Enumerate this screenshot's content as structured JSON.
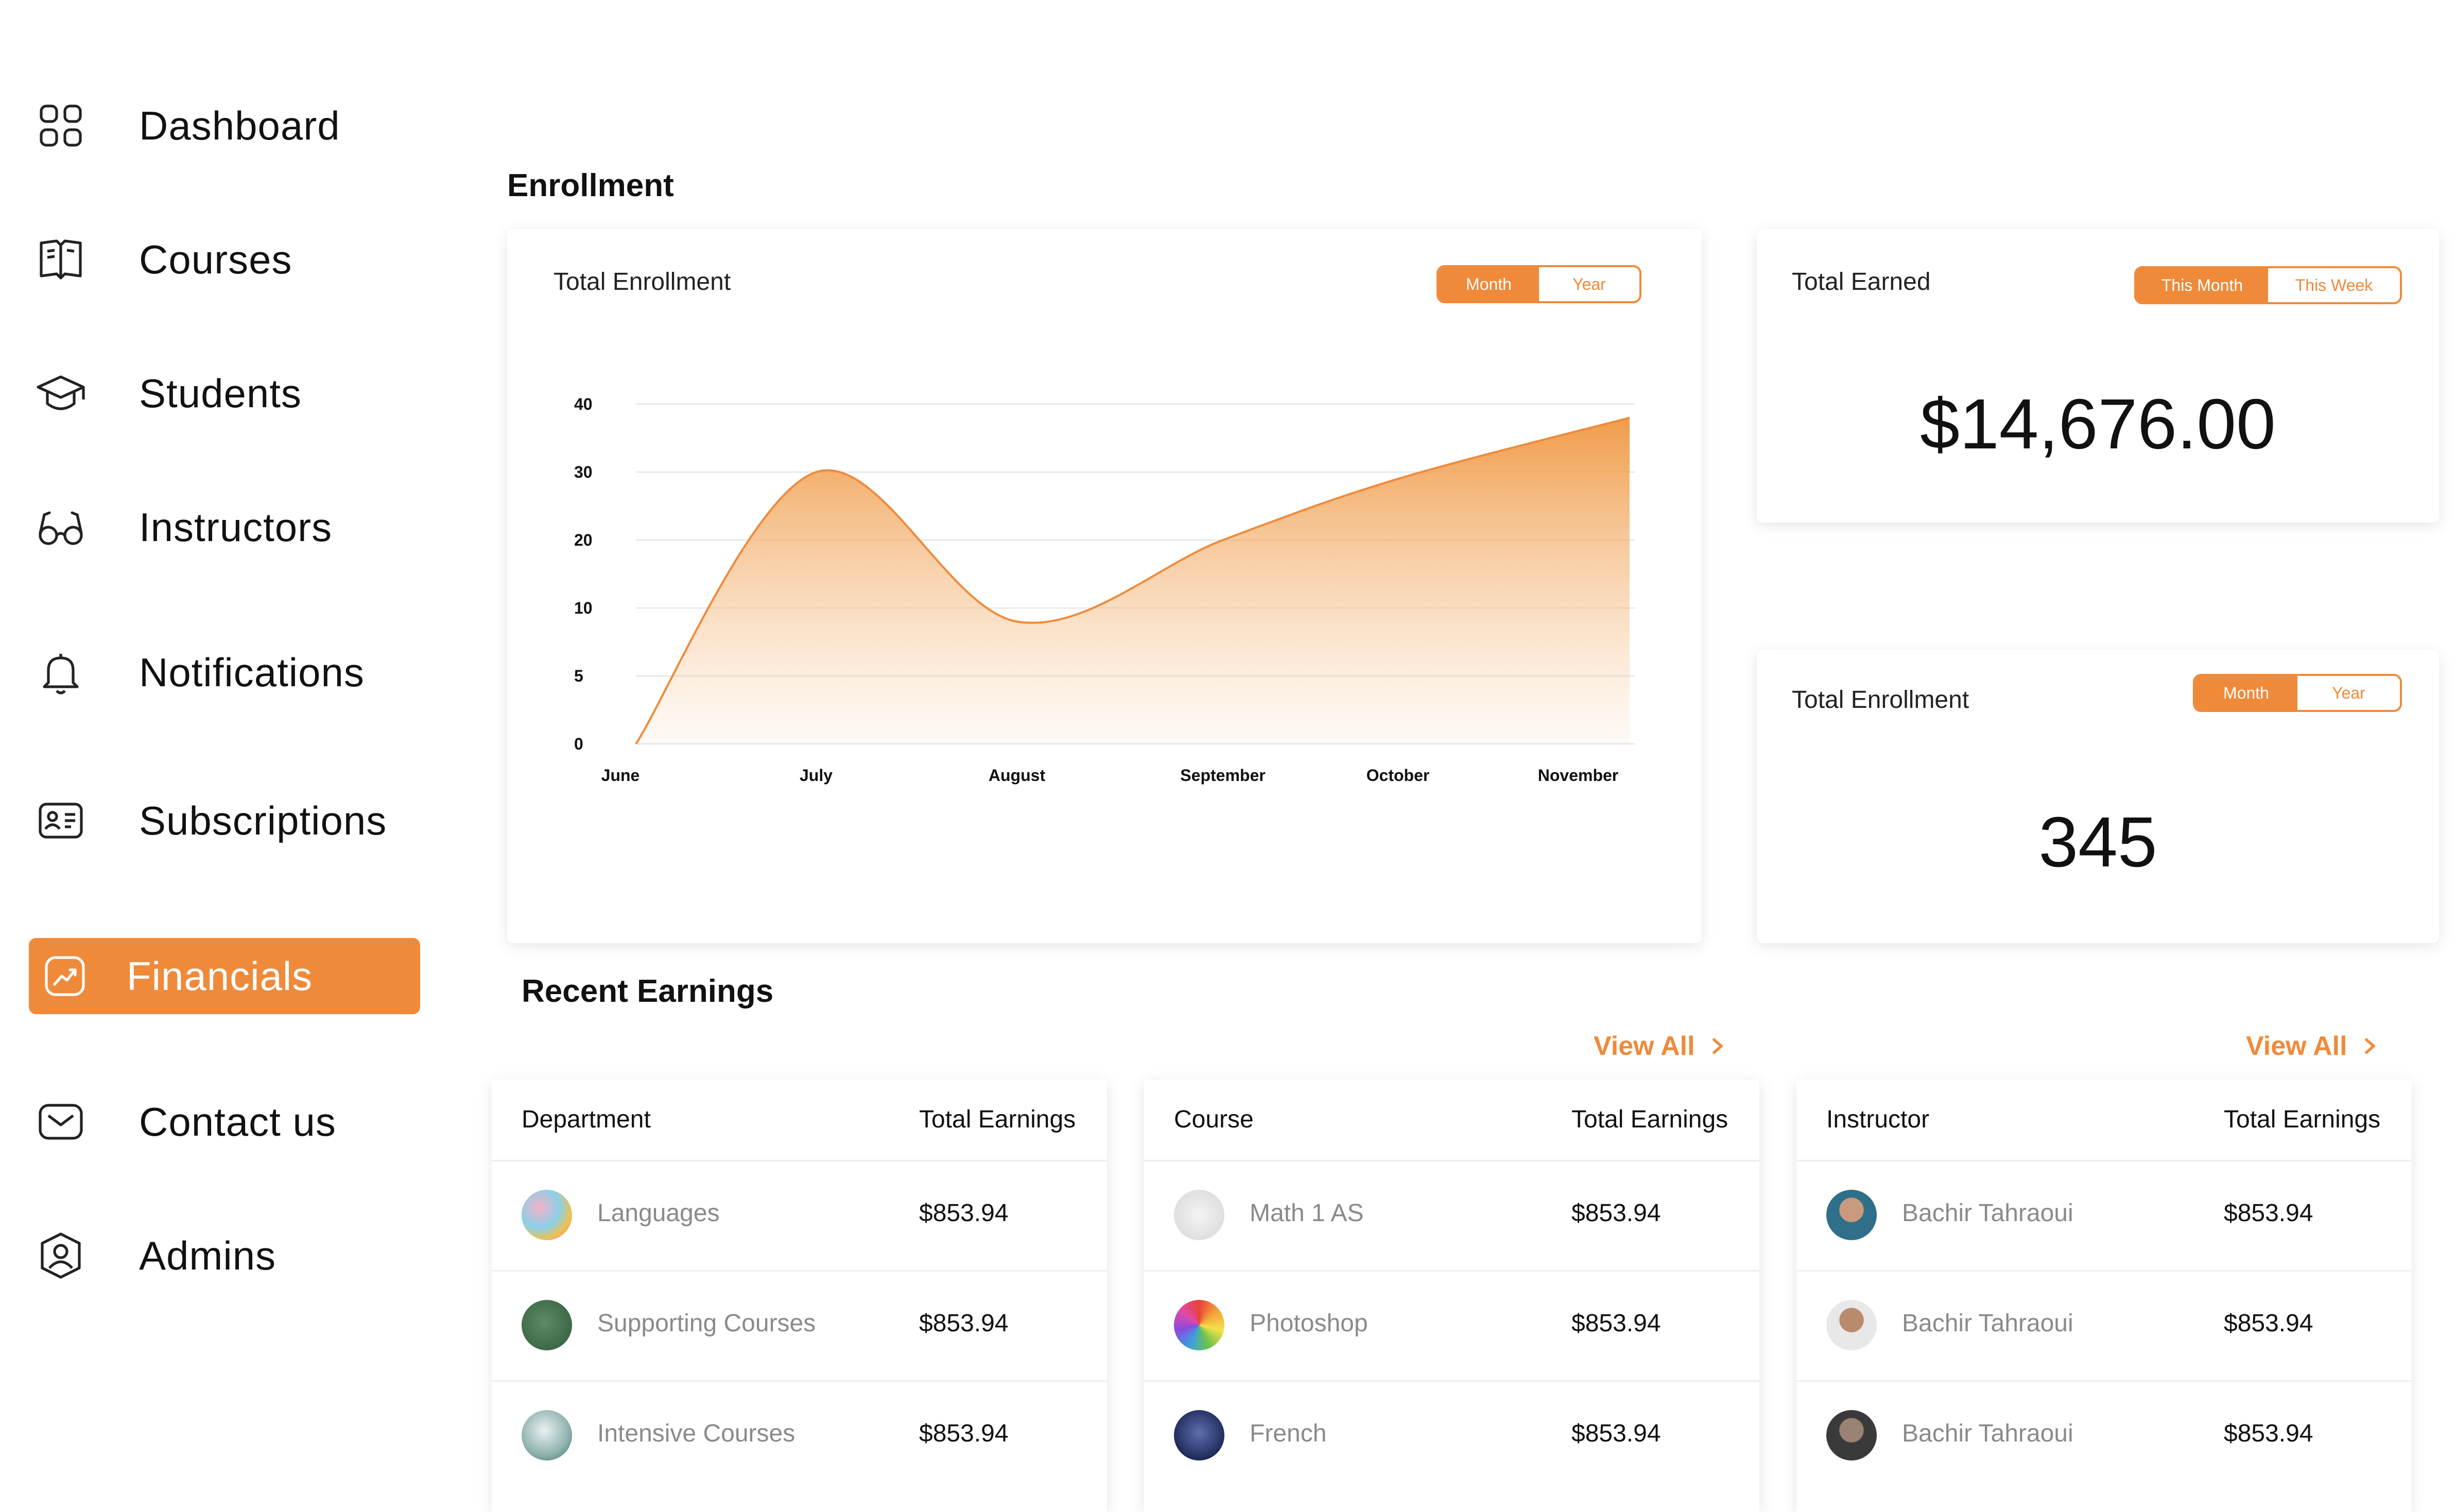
{
  "sidebar": {
    "items": [
      {
        "label": "Dashboard",
        "icon": "grid-icon"
      },
      {
        "label": "Courses",
        "icon": "book-icon"
      },
      {
        "label": "Students",
        "icon": "graduation-cap-icon"
      },
      {
        "label": "Instructors",
        "icon": "glasses-icon"
      },
      {
        "label": "Notifications",
        "icon": "bell-icon"
      },
      {
        "label": "Subscriptions",
        "icon": "id-card-icon"
      },
      {
        "label": "Financials",
        "icon": "trend-chart-icon",
        "active": true
      },
      {
        "label": "Contact us",
        "icon": "mail-icon"
      },
      {
        "label": "Admins",
        "icon": "user-shield-icon"
      }
    ]
  },
  "colors": {
    "accent": "#ef8a3a",
    "muted_text": "#8a8a8a"
  },
  "enrollment": {
    "section_title": "Enrollment",
    "chart_card": {
      "title": "Total Enrollment",
      "toggle": [
        "Month",
        "Year"
      ],
      "selected": "Month"
    },
    "earned_card": {
      "title": "Total Earned",
      "toggle": [
        "This Month",
        "This Week"
      ],
      "selected": "This Month",
      "value": "$14,676.00"
    },
    "enroll_card": {
      "title": "Total Enrollment",
      "toggle": [
        "Month",
        "Year"
      ],
      "selected": "Month",
      "value": "345"
    }
  },
  "chart_data": {
    "type": "area",
    "title": "Total Enrollment",
    "x": [
      "June",
      "July",
      "August",
      "September",
      "October",
      "November"
    ],
    "y_ticks": [
      "0",
      "5",
      "10",
      "20",
      "30",
      "40"
    ],
    "series": [
      {
        "points": [
          {
            "x": "June",
            "y": 0
          },
          {
            "x": "July",
            "y": 30
          },
          {
            "x": "August",
            "y": 9
          },
          {
            "x": "September",
            "y": 20
          },
          {
            "x": "October",
            "y": 29
          },
          {
            "x": "November",
            "y": 38
          }
        ]
      }
    ],
    "grid": true
  },
  "earnings": {
    "section_title": "Recent Earnings",
    "view_all": "View All",
    "department_table": {
      "headers": [
        "Department",
        "Total Earnings"
      ],
      "rows": [
        {
          "name": "Languages",
          "amount": "$853.94"
        },
        {
          "name": "Supporting Courses",
          "amount": "$853.94"
        },
        {
          "name": "Intensive Courses",
          "amount": "$853.94"
        }
      ]
    },
    "course_table": {
      "headers": [
        "Course",
        "Total Earnings"
      ],
      "rows": [
        {
          "name": "Math 1 AS",
          "amount": "$853.94"
        },
        {
          "name": "Photoshop",
          "amount": "$853.94"
        },
        {
          "name": "French",
          "amount": "$853.94"
        }
      ]
    },
    "instructor_table": {
      "headers": [
        "Instructor",
        "Total Earnings"
      ],
      "rows": [
        {
          "name": "Bachir Tahraoui",
          "amount": "$853.94"
        },
        {
          "name": "Bachir Tahraoui",
          "amount": "$853.94"
        },
        {
          "name": "Bachir Tahraoui",
          "amount": "$853.94"
        }
      ]
    }
  }
}
